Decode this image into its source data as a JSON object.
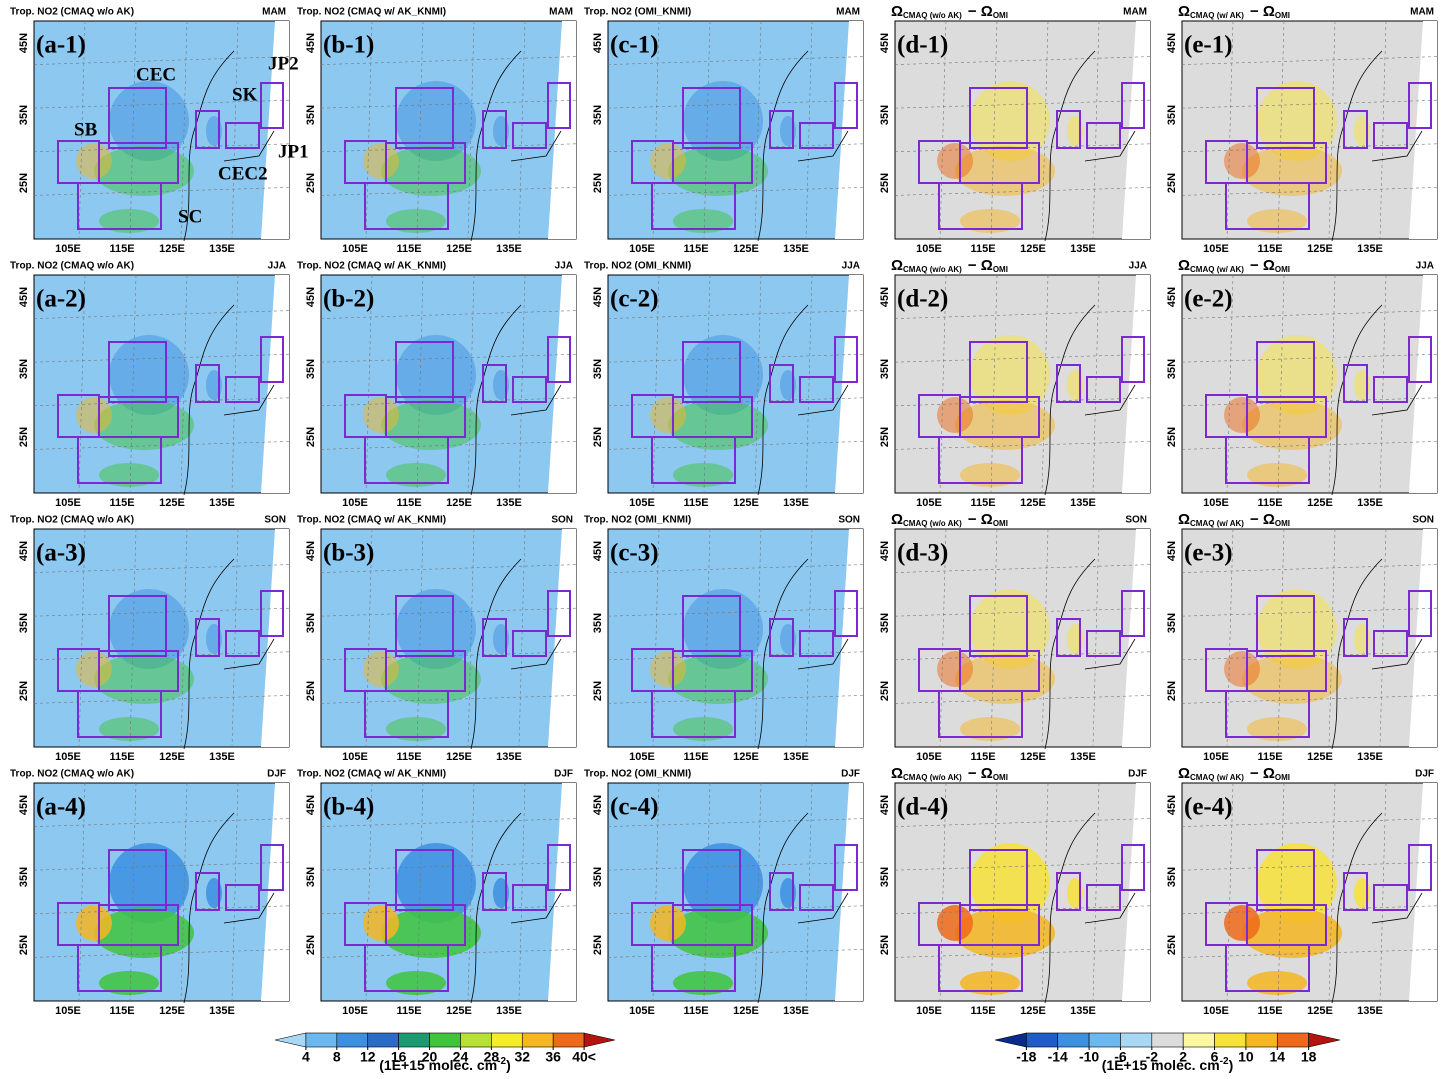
{
  "panels": [
    {
      "label": "(a-1)",
      "title": "Trop. NO2 (CMAQ w/o AK)",
      "season": "MAM"
    },
    {
      "label": "(b-1)",
      "title": "Trop. NO2 (CMAQ w/ AK_KNMI)",
      "season": "MAM"
    },
    {
      "label": "(c-1)",
      "title": "Trop. NO2 (OMI_KNMI)",
      "season": "MAM"
    },
    {
      "label": "(d-1)",
      "title_parts": [
        "Ω",
        "CMAQ (w/o AK)",
        "− Ω",
        "OMI"
      ],
      "season": "MAM"
    },
    {
      "label": "(e-1)",
      "title_parts": [
        "Ω",
        "CMAQ (w/ AK)",
        "− Ω",
        "OMI"
      ],
      "season": "MAM"
    },
    {
      "label": "(a-2)",
      "title": "Trop. NO2 (CMAQ w/o AK)",
      "season": "JJA"
    },
    {
      "label": "(b-2)",
      "title": "Trop. NO2 (CMAQ w/ AK_KNMI)",
      "season": "JJA"
    },
    {
      "label": "(c-2)",
      "title": "Trop. NO2 (OMI_KNMI)",
      "season": "JJA"
    },
    {
      "label": "(d-2)",
      "title_parts": [
        "Ω",
        "CMAQ (w/o AK)",
        "− Ω",
        "OMI"
      ],
      "season": "JJA"
    },
    {
      "label": "(e-2)",
      "title_parts": [
        "Ω",
        "CMAQ (w/ AK)",
        "− Ω",
        "OMI"
      ],
      "season": "JJA"
    },
    {
      "label": "(a-3)",
      "title": "Trop. NO2 (CMAQ w/o AK)",
      "season": "SON"
    },
    {
      "label": "(b-3)",
      "title": "Trop. NO2 (CMAQ w/ AK_KNMI)",
      "season": "SON"
    },
    {
      "label": "(c-3)",
      "title": "Trop. NO2 (OMI_KNMI)",
      "season": "SON"
    },
    {
      "label": "(d-3)",
      "title_parts": [
        "Ω",
        "CMAQ (w/o AK)",
        "− Ω",
        "OMI"
      ],
      "season": "SON"
    },
    {
      "label": "(e-3)",
      "title_parts": [
        "Ω",
        "CMAQ (w/ AK)",
        "− Ω",
        "OMI"
      ],
      "season": "SON"
    },
    {
      "label": "(a-4)",
      "title": "Trop. NO2 (CMAQ w/o AK)",
      "season": "DJF"
    },
    {
      "label": "(b-4)",
      "title": "Trop. NO2 (CMAQ w/ AK_KNMI)",
      "season": "DJF"
    },
    {
      "label": "(c-4)",
      "title": "Trop. NO2 (OMI_KNMI)",
      "season": "DJF"
    },
    {
      "label": "(d-4)",
      "title_parts": [
        "Ω",
        "CMAQ (w/o AK)",
        "− Ω",
        "OMI"
      ],
      "season": "DJF"
    },
    {
      "label": "(e-4)",
      "title_parts": [
        "Ω",
        "CMAQ (w/ AK)",
        "− Ω",
        "OMI"
      ],
      "season": "DJF"
    }
  ],
  "lon_ticks": [
    "105E",
    "115E",
    "125E",
    "135E"
  ],
  "lat_ticks": [
    "25N",
    "35N",
    "45N"
  ],
  "region_labels": [
    "CEC",
    "JP2",
    "SK",
    "SB",
    "JP1",
    "CEC2",
    "SC"
  ],
  "colorbars": [
    {
      "ticks": [
        4,
        8,
        12,
        16,
        20,
        24,
        28,
        32,
        36,
        {
          "value": 40,
          "label": "40<"
        }
      ],
      "colors": [
        "#a9d8f5",
        "#6bb8ee",
        "#3d8fe0",
        "#2a6bc6",
        "#1c9b73",
        "#3fc43c",
        "#b8e034",
        "#f5ec2a",
        "#f5b622",
        "#ee6a1a",
        "#b5130f"
      ],
      "unit_parts": [
        "(1E+15 molec. cm",
        "-2",
        ")"
      ]
    },
    {
      "ticks": [
        -18,
        -14,
        -10,
        -6,
        -2,
        2,
        6,
        10,
        14,
        18
      ],
      "colors": [
        "#0a2a8c",
        "#1f5cc8",
        "#3d8fe0",
        "#6bb8ee",
        "#a9d8f5",
        "#dcdcdc",
        "#fdf7a0",
        "#f7e23a",
        "#f5b622",
        "#ee6a1a",
        "#b5130f"
      ],
      "unit_parts": [
        "(1E+15 molec. cm",
        "-2",
        ")"
      ]
    }
  ]
}
